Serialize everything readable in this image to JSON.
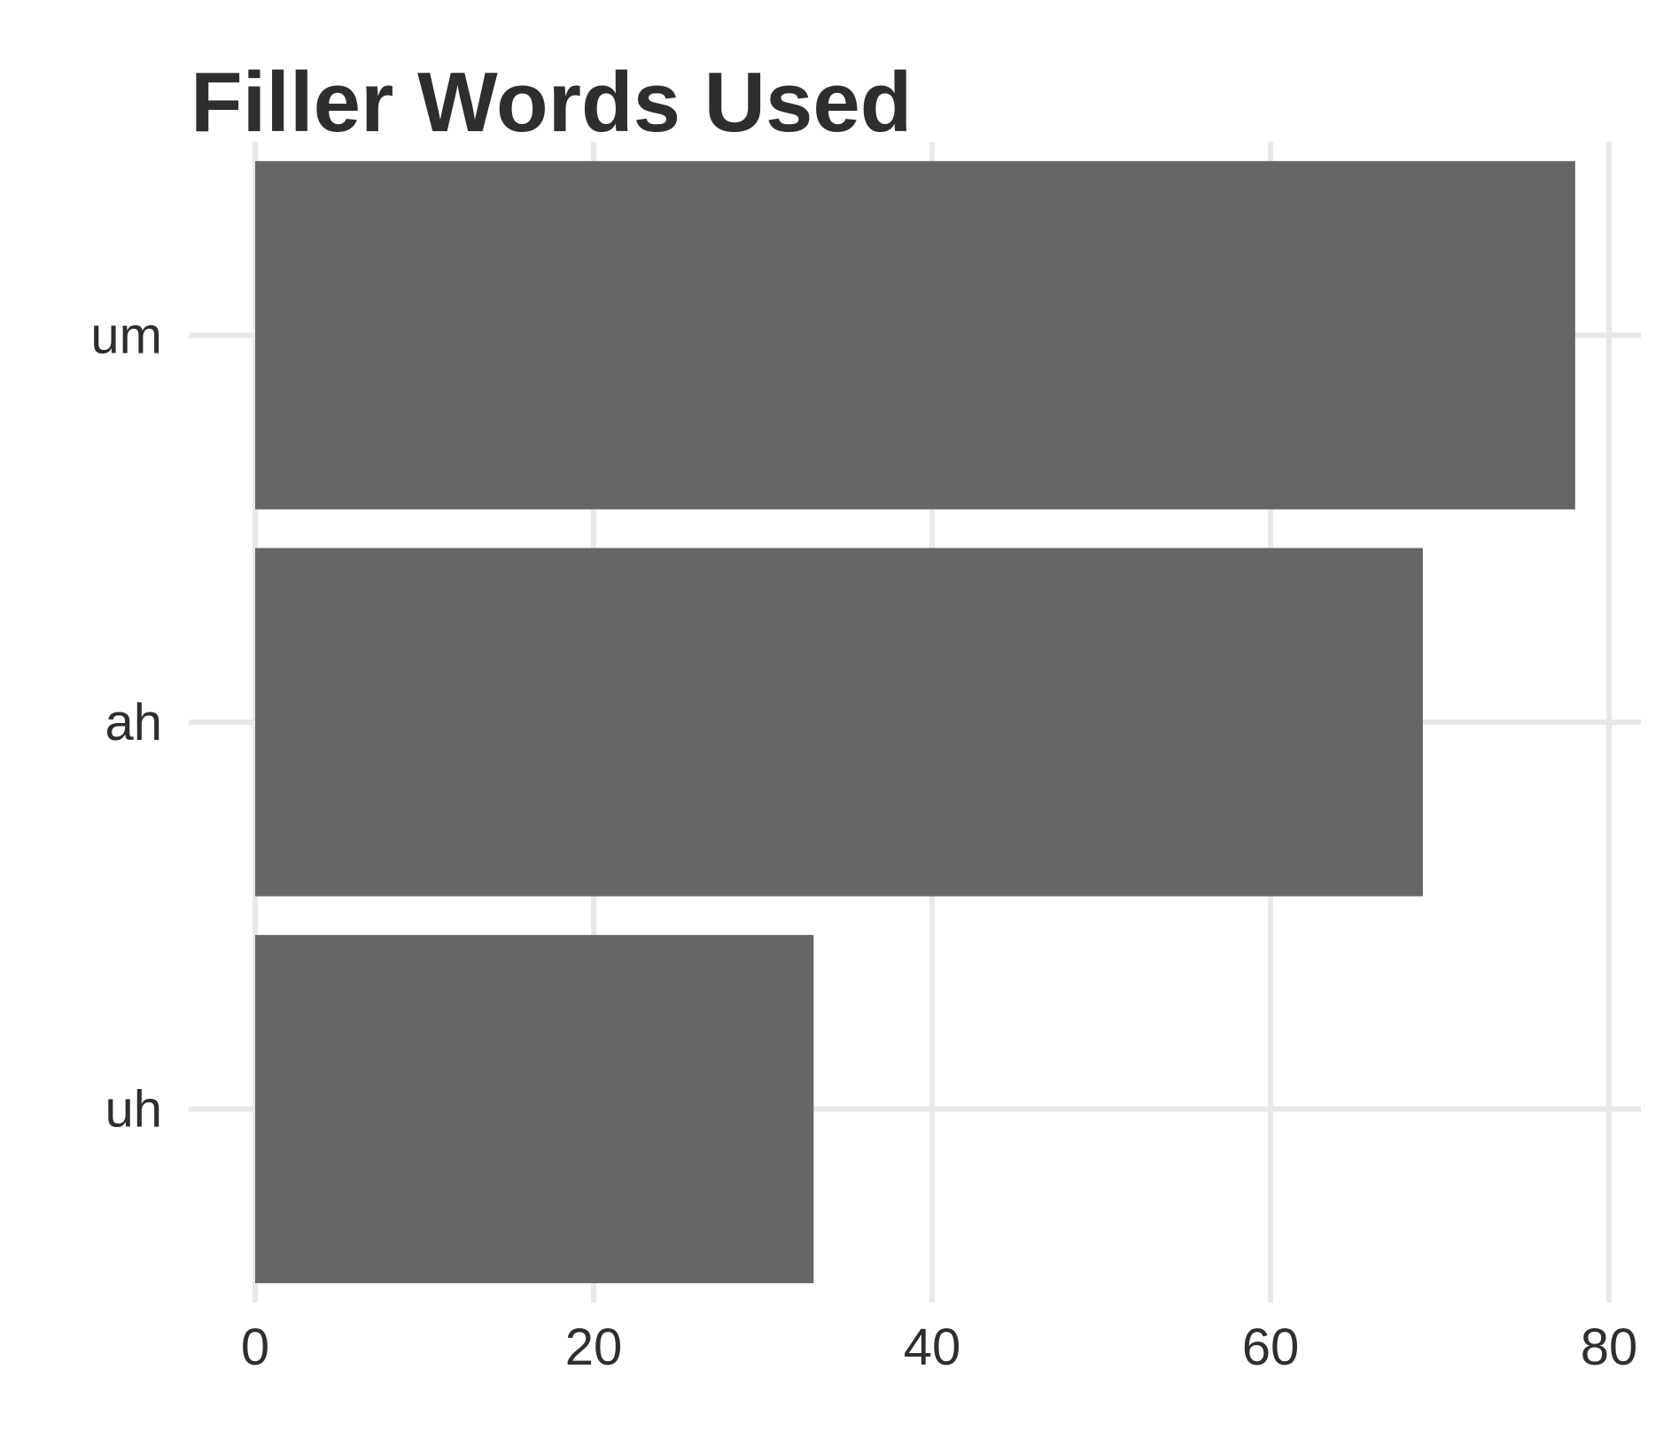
{
  "chart_data": {
    "type": "bar",
    "orientation": "horizontal",
    "title": "Filler Words Used",
    "xlabel": "",
    "ylabel": "",
    "categories": [
      "um",
      "ah",
      "uh"
    ],
    "values": [
      78,
      69,
      33
    ],
    "xlim": [
      0,
      80
    ],
    "x_ticks": [
      "0",
      "20",
      "40",
      "60",
      "80"
    ],
    "grid": true,
    "legend": "none",
    "colors": {
      "bar": "#666666",
      "grid": "#e8e8e8",
      "text": "#2e2e2e",
      "background": "#ffffff"
    }
  }
}
